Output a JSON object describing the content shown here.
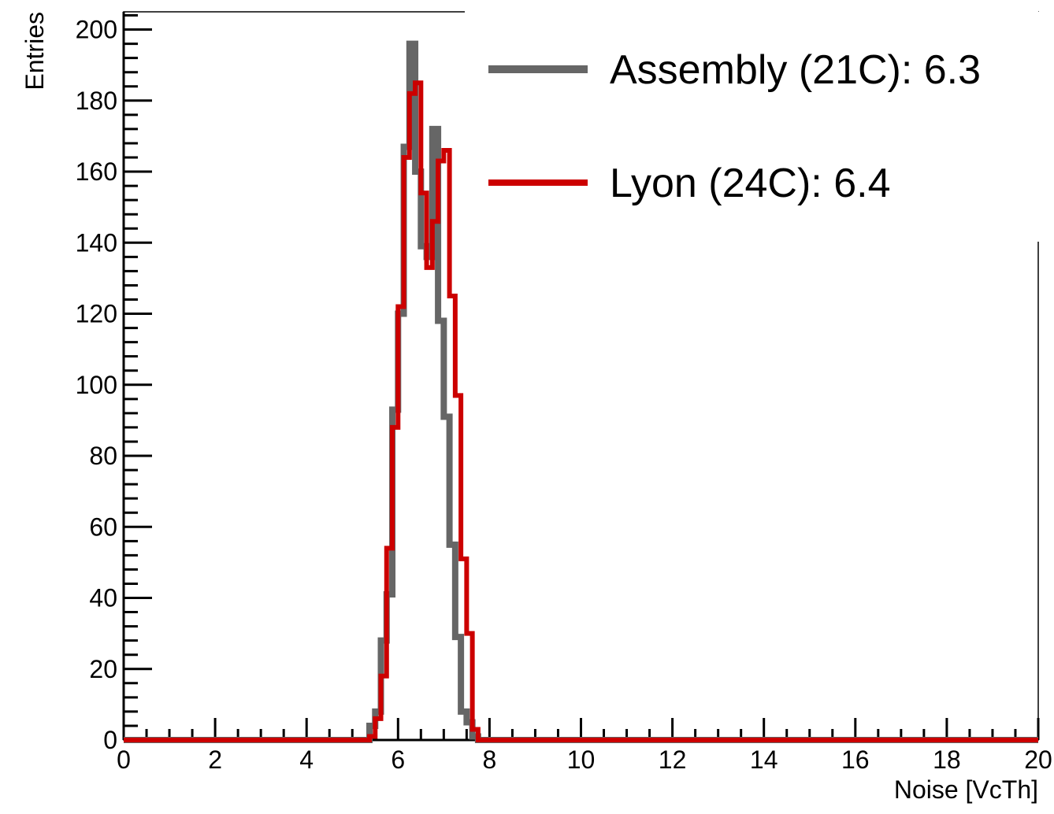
{
  "chart_data": {
    "type": "histogram",
    "xlabel": "Noise [VcTh]",
    "ylabel": "Entries",
    "xlim": [
      0,
      20
    ],
    "ylim": [
      0,
      205
    ],
    "bin_width": 0.125,
    "x_ticks": [
      0,
      2,
      4,
      6,
      8,
      10,
      12,
      14,
      16,
      18,
      20
    ],
    "y_ticks": [
      0,
      20,
      40,
      60,
      80,
      100,
      120,
      140,
      160,
      180,
      200
    ],
    "grid": false,
    "legend_position": "top-right",
    "series": [
      {
        "name": "Assembly (21C): 6.3",
        "color": "#666666",
        "bins": [
          {
            "x": 5.375,
            "y": 4
          },
          {
            "x": 5.5,
            "y": 8
          },
          {
            "x": 5.625,
            "y": 28
          },
          {
            "x": 5.75,
            "y": 41
          },
          {
            "x": 5.875,
            "y": 93
          },
          {
            "x": 6.0,
            "y": 120
          },
          {
            "x": 6.125,
            "y": 167
          },
          {
            "x": 6.25,
            "y": 196
          },
          {
            "x": 6.375,
            "y": 160
          },
          {
            "x": 6.5,
            "y": 139
          },
          {
            "x": 6.625,
            "y": 136
          },
          {
            "x": 6.75,
            "y": 172
          },
          {
            "x": 6.875,
            "y": 118
          },
          {
            "x": 7.0,
            "y": 91
          },
          {
            "x": 7.125,
            "y": 55
          },
          {
            "x": 7.25,
            "y": 29
          },
          {
            "x": 7.375,
            "y": 8
          },
          {
            "x": 7.5,
            "y": 5
          },
          {
            "x": 7.625,
            "y": 1
          }
        ]
      },
      {
        "name": "Lyon (24C): 6.4",
        "color": "#cc0000",
        "bins": [
          {
            "x": 5.375,
            "y": 1
          },
          {
            "x": 5.5,
            "y": 6
          },
          {
            "x": 5.625,
            "y": 18
          },
          {
            "x": 5.75,
            "y": 54
          },
          {
            "x": 5.875,
            "y": 88
          },
          {
            "x": 6.0,
            "y": 122
          },
          {
            "x": 6.125,
            "y": 164
          },
          {
            "x": 6.25,
            "y": 182
          },
          {
            "x": 6.375,
            "y": 185
          },
          {
            "x": 6.5,
            "y": 154
          },
          {
            "x": 6.625,
            "y": 133
          },
          {
            "x": 6.75,
            "y": 146
          },
          {
            "x": 6.875,
            "y": 163
          },
          {
            "x": 7.0,
            "y": 166
          },
          {
            "x": 7.125,
            "y": 125
          },
          {
            "x": 7.25,
            "y": 97
          },
          {
            "x": 7.375,
            "y": 51
          },
          {
            "x": 7.5,
            "y": 30
          },
          {
            "x": 7.625,
            "y": 3
          },
          {
            "x": 7.75,
            "y": 0
          }
        ]
      }
    ]
  }
}
